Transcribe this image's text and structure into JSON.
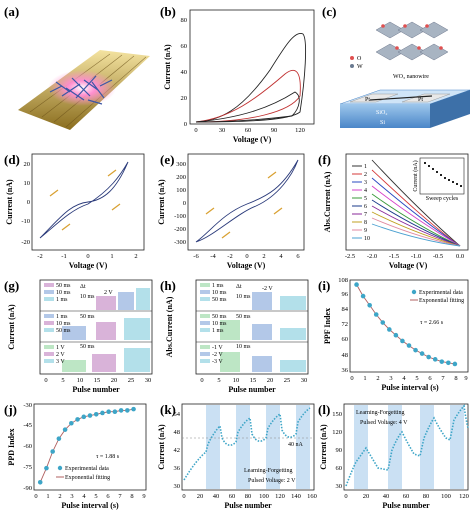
{
  "panels": {
    "a": {
      "letter": "(a)"
    },
    "b": {
      "letter": "(b)",
      "xlabel": "Voltage (V)",
      "ylabel": "Current (nA)",
      "xticks": [
        "0",
        "30",
        "60",
        "90",
        "120"
      ],
      "yticks": [
        "0",
        "20",
        "40",
        "60",
        "80"
      ]
    },
    "c": {
      "letter": "(c)",
      "legend_o": "O",
      "legend_w": "W",
      "nanowire": "WO₃ nanowire",
      "pt_left": "Pt",
      "pt_right": "Pt",
      "sio2": "SiO₂",
      "si": "Si"
    },
    "d": {
      "letter": "(d)",
      "xlabel": "Voltage (V)",
      "ylabel": "Current (nA)",
      "xticks": [
        "-2",
        "-1",
        "0",
        "1",
        "2"
      ],
      "yticks": [
        "-20",
        "-10",
        "0",
        "10",
        "20"
      ]
    },
    "e": {
      "letter": "(e)",
      "xlabel": "Voltage (V)",
      "ylabel": "Current (nA)",
      "xticks": [
        "-6",
        "-4",
        "-2",
        "0",
        "2",
        "4",
        "6"
      ],
      "yticks": [
        "-300",
        "-200",
        "-100",
        "0",
        "100",
        "200",
        "300"
      ]
    },
    "f": {
      "letter": "(f)",
      "xlabel": "Voltage (V)",
      "ylabel": "Abs.Current (nA)",
      "xticks": [
        "-2.5",
        "-2.0",
        "-1.5",
        "-1.0",
        "-0.5",
        "0.0"
      ],
      "legend": [
        "1",
        "2",
        "3",
        "4",
        "5",
        "6",
        "7",
        "8",
        "9",
        "10"
      ],
      "inset_xlabel": "Sweep cycles",
      "inset_ylabel": "Current (nA)"
    },
    "g": {
      "letter": "(g)",
      "xlabel": "Pulse number",
      "ylabel": "Current (nA)",
      "xticks": [
        "0",
        "5",
        "10",
        "15",
        "20",
        "25",
        "30"
      ],
      "legend_top": [
        "50 ms",
        "10 ms",
        "1 ms"
      ],
      "legend_mid": [
        "1 ms",
        "10 ms",
        "50 ms"
      ],
      "legend_bot": [
        "1 V",
        "2 V",
        "3 V"
      ],
      "pulse_top": "10 ms",
      "pulse_v": "2 V",
      "pulse_mid": "50 ms",
      "pulse_bot": "50 ms",
      "dt": "Δt"
    },
    "h": {
      "letter": "(h)",
      "xlabel": "Pulse number",
      "ylabel": "Abs.Current (nA)",
      "xticks": [
        "0",
        "5",
        "10",
        "15",
        "20",
        "25",
        "30"
      ],
      "legend_top": [
        "1 ms",
        "10 ms",
        "50 ms"
      ],
      "legend_mid": [
        "50 ms",
        "10 ms",
        "1 ms"
      ],
      "legend_bot": [
        "-1 V",
        "-2 V",
        "-3 V"
      ],
      "pulse_top": "10 ms",
      "pulse_v": "-2 V",
      "pulse_mid": "50 ms",
      "pulse_bot": "10 ms",
      "dt": "Δt"
    },
    "i": {
      "letter": "(i)",
      "xlabel": "Pulse interval (s)",
      "ylabel": "PPF Index",
      "xticks": [
        "0",
        "1",
        "2",
        "3",
        "4",
        "5",
        "6",
        "7",
        "8",
        "9"
      ],
      "yticks": [
        "36",
        "48",
        "60",
        "72",
        "84",
        "96",
        "108"
      ],
      "legend": [
        "Experimental data",
        "Exponential fitting"
      ],
      "tau": "τ = 2.66 s"
    },
    "j": {
      "letter": "(j)",
      "xlabel": "Pulse interval (s)",
      "ylabel": "PPD Index",
      "xticks": [
        "0",
        "1",
        "2",
        "3",
        "4",
        "5",
        "6",
        "7",
        "8",
        "9"
      ],
      "yticks": [
        "-90",
        "-75",
        "-60",
        "-45",
        "-30"
      ],
      "legend": [
        "Experimental data",
        "Exponential fitting"
      ],
      "tau": "τ = 1.88 s"
    },
    "k": {
      "letter": "(k)",
      "xlabel": "Pulse number",
      "ylabel": "Current (nA)",
      "xticks": [
        "0",
        "20",
        "40",
        "60",
        "80",
        "100",
        "120",
        "140",
        "160"
      ],
      "yticks": [
        "30",
        "36",
        "42",
        "48",
        "54"
      ],
      "ann": "40 nA",
      "note1": "Learning-Forgetting",
      "note2": "Pulsed Voltage: 2 V"
    },
    "l": {
      "letter": "(l)",
      "xlabel": "Pulse number",
      "ylabel": "Current (nA)",
      "xticks": [
        "0",
        "20",
        "40",
        "60",
        "80",
        "100",
        "120"
      ],
      "yticks": [
        "30",
        "60",
        "90",
        "120",
        "150"
      ],
      "note1": "Learning-Forgetting",
      "note2": "Pulsed Voltage: 4 V"
    }
  },
  "chart_data": [
    {
      "panel": "i",
      "type": "scatter",
      "x": [
        0.5,
        1,
        1.5,
        2,
        2.5,
        3,
        3.5,
        4,
        4.5,
        5,
        5.5,
        6,
        6.5,
        7,
        7.5,
        8
      ],
      "y": [
        106,
        96,
        88,
        80,
        73,
        67,
        62,
        57,
        53,
        49,
        46,
        43,
        41,
        39,
        38,
        37
      ]
    },
    {
      "panel": "j",
      "type": "scatter",
      "x": [
        0.5,
        1,
        1.5,
        2,
        2.5,
        3,
        3.5,
        4,
        4.5,
        5,
        5.5,
        6,
        6.5,
        7,
        7.5,
        8
      ],
      "y": [
        -89,
        -78,
        -65,
        -55,
        -48,
        -43,
        -40,
        -38,
        -37,
        -36,
        -35,
        -34,
        -34,
        -33,
        -33,
        -32
      ]
    }
  ],
  "colors": {
    "pink": "#d9b3d9",
    "blue": "#b3c8e8",
    "cyan": "#b3e0ea",
    "green": "#bde6c5",
    "point": "#3da5c7",
    "fit": "#b06060",
    "arrow": "#d9a030"
  }
}
